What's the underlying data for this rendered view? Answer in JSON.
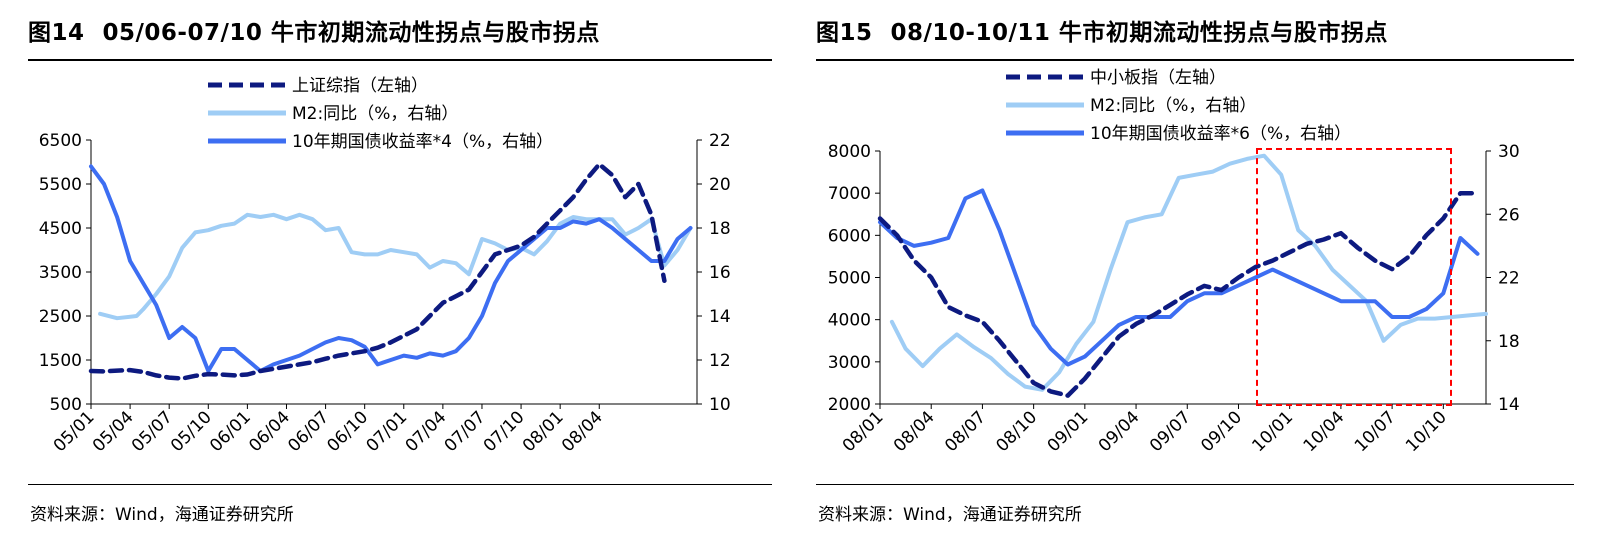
{
  "charts": [
    {
      "title_num": "图14",
      "title_text": "05/06-07/10 牛市初期流动性拐点与股市拐点",
      "source": "资料来源：Wind，海通证券研究所",
      "legend": [
        {
          "label": "上证综指（左轴）",
          "color": "#0d1a80",
          "style": "dash"
        },
        {
          "label": "M2:同比（%，右轴）",
          "color": "#9fcdf5",
          "style": "solid"
        },
        {
          "label": "10年期国债收益率*4（%，右轴）",
          "color": "#3d6ef2",
          "style": "solid"
        }
      ],
      "left_ticks": [
        "6500",
        "5500",
        "4500",
        "3500",
        "2500",
        "1500",
        "500"
      ],
      "right_ticks": [
        "22",
        "20",
        "18",
        "16",
        "14",
        "12",
        "10"
      ],
      "x_ticks": [
        "05/01",
        "05/04",
        "05/07",
        "05/10",
        "06/01",
        "06/04",
        "06/07",
        "06/10",
        "07/01",
        "07/04",
        "07/07",
        "07/10",
        "08/01",
        "08/04"
      ]
    },
    {
      "title_num": "图15",
      "title_text": "08/10-10/11 牛市初期流动性拐点与股市拐点",
      "source": "资料来源：Wind，海通证券研究所",
      "legend": [
        {
          "label": "中小板指（左轴）",
          "color": "#0d1a80",
          "style": "dash"
        },
        {
          "label": "M2:同比（%，右轴）",
          "color": "#9fcdf5",
          "style": "solid"
        },
        {
          "label": "10年期国债收益率*6（%，右轴）",
          "color": "#3d6ef2",
          "style": "solid"
        }
      ],
      "left_ticks": [
        "8000",
        "7000",
        "6000",
        "5000",
        "4000",
        "3000",
        "2000"
      ],
      "right_ticks": [
        "30",
        "26",
        "22",
        "18",
        "14"
      ],
      "x_ticks": [
        "08/01",
        "08/04",
        "08/07",
        "08/10",
        "09/01",
        "09/04",
        "09/07",
        "09/10",
        "10/01",
        "10/04",
        "10/07",
        "10/10"
      ]
    }
  ],
  "chart_data": [
    {
      "type": "line",
      "title": "05/06-07/10 牛市初期流动性拐点与股市拐点",
      "x_start": "05/01",
      "x_end": "08/06",
      "x_ticks": [
        "05/01",
        "05/04",
        "05/07",
        "05/10",
        "06/01",
        "06/04",
        "06/07",
        "06/10",
        "07/01",
        "07/04",
        "07/07",
        "07/10",
        "08/01",
        "08/04"
      ],
      "ylim_left": [
        500,
        6500
      ],
      "ylim_right": [
        10,
        22
      ],
      "series": [
        {
          "name": "上证综指（左轴）",
          "axis": "left",
          "color": "#0d1a80",
          "style": "dash",
          "x": [
            0,
            1,
            2,
            3,
            4,
            5,
            6,
            7,
            8,
            9,
            10,
            11,
            12,
            13,
            14,
            15,
            16,
            17,
            18,
            19,
            20,
            21,
            22,
            23,
            24,
            25,
            26,
            27,
            28,
            29,
            30,
            31,
            32,
            33,
            34,
            35,
            36,
            37,
            38,
            39,
            40,
            41,
            42,
            43,
            44
          ],
          "y": [
            1250,
            1240,
            1260,
            1270,
            1230,
            1150,
            1100,
            1080,
            1140,
            1180,
            1170,
            1150,
            1170,
            1250,
            1300,
            1350,
            1400,
            1450,
            1530,
            1600,
            1650,
            1700,
            1780,
            1900,
            2050,
            2200,
            2500,
            2800,
            2950,
            3100,
            3500,
            3900,
            4000,
            4100,
            4300,
            4600,
            4900,
            5200,
            5600,
            5950,
            5700,
            5200,
            5500,
            4800,
            3300
          ]
        },
        {
          "name": "M2:同比（%，右轴）",
          "axis": "right",
          "color": "#9fcdf5",
          "style": "solid",
          "x": [
            0.7,
            2,
            3.5,
            4,
            5,
            6,
            7,
            8,
            9,
            10,
            11,
            12,
            13,
            14,
            15,
            16,
            17,
            18,
            19,
            20,
            21,
            22,
            23,
            24,
            25,
            26,
            27,
            28,
            29,
            30,
            31,
            32,
            33,
            34,
            35,
            36,
            37,
            38,
            39,
            40,
            41,
            42,
            43,
            44,
            45,
            46
          ],
          "y": [
            14.1,
            13.9,
            14.0,
            14.3,
            15.0,
            15.8,
            17.1,
            17.8,
            17.9,
            18.1,
            18.2,
            18.6,
            18.5,
            18.6,
            18.4,
            18.6,
            18.4,
            17.9,
            18.0,
            16.9,
            16.8,
            16.8,
            17.0,
            16.9,
            16.8,
            16.2,
            16.5,
            16.4,
            15.9,
            17.5,
            17.3,
            17.0,
            17.1,
            16.8,
            17.4,
            18.2,
            18.5,
            18.4,
            18.4,
            18.4,
            17.7,
            18.0,
            18.4,
            16.3,
            17.0,
            18.0
          ]
        },
        {
          "name": "10年期国债收益率*4（%，右轴）",
          "axis": "right",
          "color": "#3d6ef2",
          "style": "solid",
          "x": [
            0,
            1,
            2,
            3,
            4,
            5,
            6,
            7,
            8,
            9,
            10,
            11,
            12,
            13,
            14,
            15,
            16,
            17,
            18,
            19,
            20,
            21,
            22,
            23,
            24,
            25,
            26,
            27,
            28,
            29,
            30,
            31,
            32,
            33,
            34,
            35,
            36,
            37,
            38,
            39,
            40,
            41,
            42,
            43,
            44,
            45,
            46
          ],
          "y": [
            20.8,
            20.0,
            18.5,
            16.5,
            15.5,
            14.5,
            13.0,
            13.5,
            13.0,
            11.5,
            12.5,
            12.5,
            12.0,
            11.5,
            11.8,
            12.0,
            12.2,
            12.5,
            12.8,
            13.0,
            12.9,
            12.6,
            11.8,
            12.0,
            12.2,
            12.1,
            12.3,
            12.2,
            12.4,
            13.0,
            14.0,
            15.5,
            16.5,
            17.0,
            17.5,
            18.0,
            18.0,
            18.3,
            18.2,
            18.4,
            18.0,
            17.5,
            17.0,
            16.5,
            16.5,
            17.5,
            18.0
          ]
        }
      ]
    },
    {
      "type": "line",
      "title": "08/10-10/11 牛市初期流动性拐点与股市拐点",
      "x_start": "08/01",
      "x_end": "10/12",
      "x_ticks": [
        "08/01",
        "08/04",
        "08/07",
        "08/10",
        "09/01",
        "09/04",
        "09/07",
        "09/10",
        "10/01",
        "10/04",
        "10/07",
        "10/10"
      ],
      "ylim_left": [
        2000,
        8000
      ],
      "ylim_right": [
        14,
        30
      ],
      "series": [
        {
          "name": "中小板指（左轴）",
          "axis": "left",
          "color": "#0d1a80",
          "style": "dash",
          "x": [
            0,
            1,
            2,
            3,
            4,
            5,
            6,
            7,
            8,
            9,
            10,
            11,
            12,
            13,
            14,
            15,
            16,
            17,
            18,
            19,
            20,
            21,
            22,
            23,
            24,
            25,
            26,
            27,
            28,
            29,
            30,
            31,
            32,
            33,
            34,
            35
          ],
          "y": [
            6400,
            6000,
            5400,
            5000,
            4300,
            4100,
            3950,
            3500,
            3000,
            2500,
            2300,
            2200,
            2600,
            3100,
            3600,
            3900,
            4100,
            4350,
            4600,
            4800,
            4700,
            5000,
            5250,
            5400,
            5600,
            5800,
            5900,
            6050,
            5700,
            5400,
            5200,
            5500,
            6000,
            6400,
            7000,
            7000
          ]
        },
        {
          "name": "M2:同比（%，右轴）",
          "axis": "right",
          "color": "#9fcdf5",
          "style": "solid",
          "x": [
            0.7,
            1.5,
            2.5,
            3.5,
            4.5,
            5.5,
            6.5,
            7.5,
            8.5,
            9.5,
            10.5,
            11.5,
            12.5,
            13.5,
            14.5,
            15.5,
            16.5,
            17.5,
            18.5,
            19.5,
            20.5,
            21.5,
            22.5,
            23.5,
            24.5,
            25.5,
            26.5,
            27.5,
            28.5,
            29.5,
            30.5,
            31.5,
            32.5,
            33.5,
            34.5,
            35.5
          ],
          "y": [
            19.2,
            17.5,
            16.4,
            17.5,
            18.4,
            17.6,
            16.9,
            15.9,
            15.1,
            14.9,
            16.0,
            17.8,
            19.2,
            22.5,
            25.5,
            25.8,
            26.0,
            28.3,
            28.5,
            28.7,
            29.2,
            29.5,
            29.7,
            28.5,
            25.0,
            24.0,
            22.5,
            21.5,
            20.5,
            18.0,
            19.0,
            19.4,
            19.4,
            19.5,
            19.6,
            19.7
          ]
        },
        {
          "name": "10年期国债收益率*6（%，右轴）",
          "axis": "right",
          "color": "#3d6ef2",
          "style": "solid",
          "x": [
            0,
            1,
            2,
            3,
            4,
            5,
            6,
            7,
            8,
            9,
            10,
            11,
            12,
            13,
            14,
            15,
            16,
            17,
            18,
            19,
            20,
            21,
            22,
            23,
            24,
            25,
            26,
            27,
            28,
            29,
            30,
            31,
            32,
            33,
            34,
            35
          ],
          "y": [
            25.5,
            24.5,
            24.0,
            24.2,
            24.5,
            27.0,
            27.5,
            25.0,
            22.0,
            19.0,
            17.5,
            16.5,
            17.0,
            18.0,
            19.0,
            19.5,
            19.5,
            19.5,
            20.5,
            21.0,
            21.0,
            21.5,
            22.0,
            22.5,
            22.0,
            21.5,
            21.0,
            20.5,
            20.5,
            20.5,
            19.5,
            19.5,
            20.0,
            21.0,
            24.5,
            23.5
          ]
        }
      ]
    }
  ]
}
